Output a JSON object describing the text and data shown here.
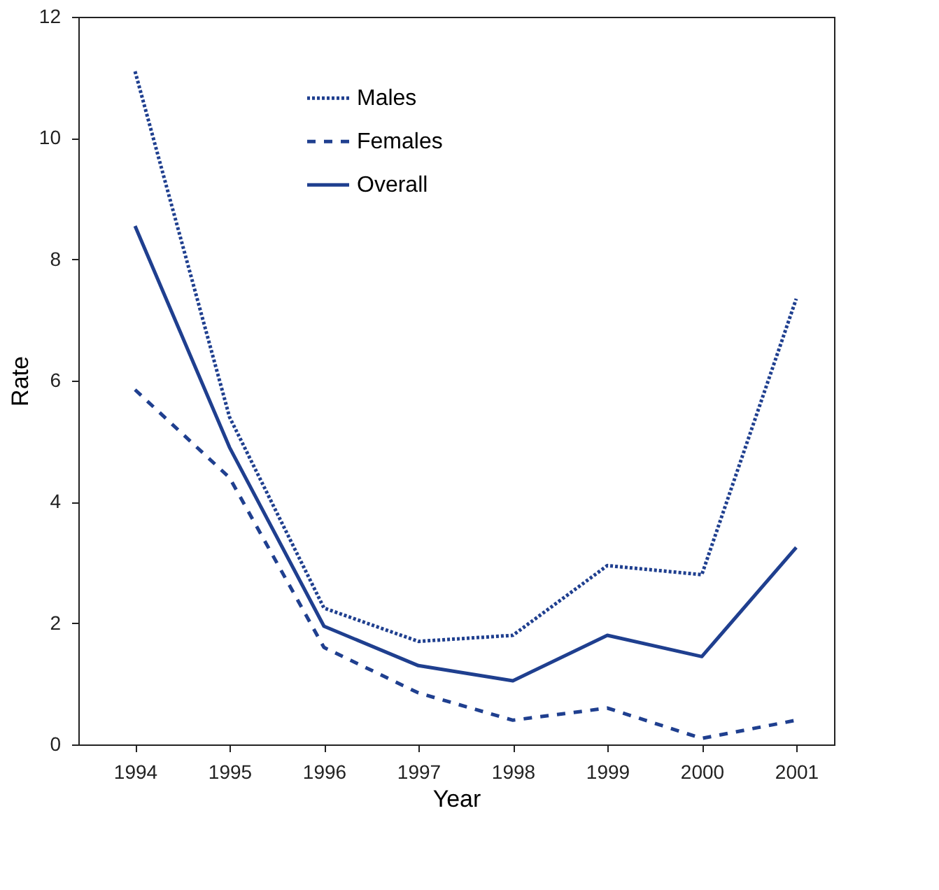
{
  "chart_data": {
    "type": "line",
    "xlabel": "Year",
    "ylabel": "Rate",
    "categories": [
      "1994",
      "1995",
      "1996",
      "1997",
      "1998",
      "1999",
      "2000",
      "2001"
    ],
    "series": [
      {
        "name": "Males",
        "color": "#1f3f8f",
        "line_style": "dotted",
        "values": [
          11.1,
          5.4,
          2.25,
          1.7,
          1.8,
          2.95,
          2.8,
          7.35
        ]
      },
      {
        "name": "Females",
        "color": "#1f3f8f",
        "line_style": "dashed",
        "values": [
          5.85,
          4.4,
          1.6,
          0.85,
          0.4,
          0.6,
          0.1,
          0.4
        ]
      },
      {
        "name": "Overall",
        "color": "#1f3f8f",
        "line_style": "solid",
        "values": [
          8.55,
          4.9,
          1.95,
          1.3,
          1.05,
          1.8,
          1.45,
          3.25
        ]
      }
    ],
    "ylim": [
      0,
      12
    ],
    "yticks": [
      0,
      2,
      4,
      6,
      8,
      10,
      12
    ],
    "grid": false,
    "legend": "top",
    "marker": "none"
  }
}
